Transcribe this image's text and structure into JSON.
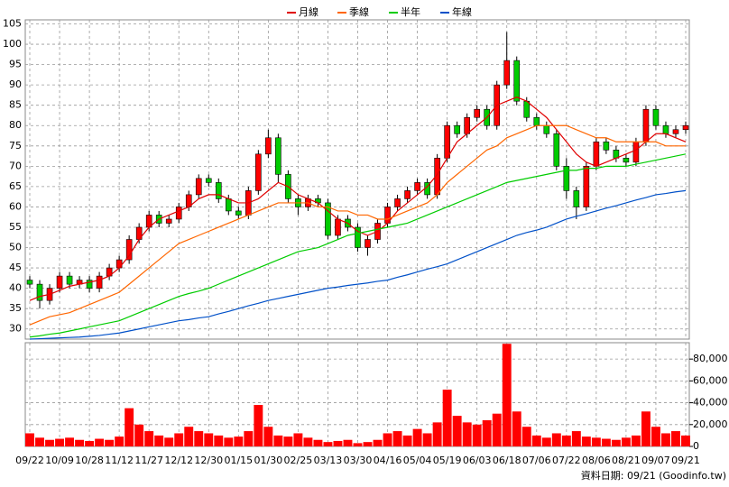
{
  "chart_data": [
    {
      "type": "candlestick",
      "caption": "資料日期: 09/21 (Goodinfo.tw)",
      "categories": [
        "09/22",
        null,
        null,
        "10/09",
        null,
        null,
        "10/28",
        null,
        null,
        "11/12",
        null,
        null,
        "11/27",
        null,
        null,
        "12/12",
        null,
        null,
        "12/30",
        null,
        null,
        "01/15",
        null,
        null,
        "01/30",
        null,
        null,
        "02/25",
        null,
        null,
        "03/13",
        null,
        null,
        "03/30",
        null,
        null,
        "04/16",
        null,
        null,
        "05/04",
        null,
        null,
        "05/19",
        null,
        null,
        "06/03",
        null,
        null,
        "06/18",
        null,
        null,
        "07/06",
        null,
        null,
        "07/22",
        null,
        null,
        "08/06",
        null,
        null,
        "08/21",
        null,
        null,
        "09/07",
        null,
        null,
        "09/21"
      ],
      "open": [
        42,
        41,
        37,
        40,
        43,
        41,
        42,
        40,
        43,
        45,
        47,
        52,
        55,
        58,
        56,
        57,
        60,
        63,
        67,
        66,
        62,
        59,
        58,
        64,
        73,
        77,
        68,
        62,
        60,
        62,
        61,
        53,
        57,
        55,
        50,
        52,
        56,
        60,
        62,
        64,
        66,
        63,
        72,
        80,
        78,
        82,
        84,
        80,
        90,
        96,
        86,
        82,
        80,
        78,
        70,
        64,
        60,
        70,
        76,
        74,
        72,
        71,
        76,
        84,
        80,
        78,
        79
      ],
      "high": [
        43,
        42,
        41,
        44,
        44,
        43,
        43,
        44,
        46,
        48,
        53,
        56,
        59,
        59,
        58,
        61,
        64,
        68,
        68,
        67,
        63,
        60,
        65,
        74,
        79,
        78,
        69,
        63,
        63,
        63,
        62,
        58,
        58,
        56,
        53,
        57,
        61,
        63,
        65,
        67,
        67,
        73,
        81,
        81,
        83,
        85,
        85,
        91,
        103,
        97,
        87,
        83,
        81,
        79,
        72,
        65,
        71,
        77,
        77,
        75,
        73,
        77,
        85,
        85,
        81,
        80,
        81
      ],
      "low": [
        40,
        35,
        36,
        39,
        40,
        40,
        39,
        39,
        42,
        44,
        46,
        51,
        54,
        55,
        55,
        56,
        59,
        62,
        65,
        61,
        58,
        57,
        57,
        63,
        72,
        66,
        61,
        58,
        59,
        60,
        52,
        52,
        54,
        49,
        48,
        51,
        55,
        59,
        61,
        63,
        62,
        62,
        71,
        77,
        77,
        81,
        79,
        79,
        89,
        85,
        81,
        79,
        77,
        69,
        62,
        57,
        59,
        69,
        73,
        71,
        70,
        70,
        75,
        79,
        77,
        77,
        78
      ],
      "close": [
        41,
        37,
        40,
        43,
        41,
        42,
        40,
        43,
        45,
        47,
        52,
        55,
        58,
        56,
        57,
        60,
        63,
        67,
        66,
        62,
        59,
        58,
        64,
        73,
        77,
        68,
        62,
        60,
        62,
        61,
        53,
        57,
        55,
        50,
        52,
        56,
        60,
        62,
        64,
        66,
        63,
        72,
        80,
        78,
        82,
        84,
        80,
        90,
        96,
        86,
        82,
        80,
        78,
        70,
        64,
        60,
        70,
        76,
        74,
        72,
        71,
        76,
        84,
        80,
        78,
        79,
        80
      ],
      "up_color": "#ff0000",
      "down_color": "#00cc00",
      "series": [
        {
          "name": "月線",
          "color": "#e00000",
          "values": [
            37,
            38,
            38.5,
            39.5,
            40.5,
            41,
            41.5,
            42,
            43,
            45,
            48,
            52,
            55,
            57,
            58,
            59,
            60,
            62,
            63,
            63,
            62,
            61,
            61,
            62,
            64,
            66,
            65,
            63,
            62,
            61,
            59,
            57,
            56,
            54,
            53,
            54,
            56,
            59,
            61,
            63,
            65,
            68,
            72,
            76,
            78,
            80,
            82,
            85,
            86,
            87,
            86,
            84,
            82,
            79,
            76,
            73,
            71,
            70,
            71,
            72,
            73,
            74,
            76,
            78,
            78,
            77,
            76
          ]
        },
        {
          "name": "季線",
          "color": "#ff6600",
          "values": [
            31,
            32,
            33,
            33.5,
            34,
            35,
            36,
            37,
            38,
            39,
            41,
            43,
            45,
            47,
            49,
            51,
            52,
            53,
            54,
            55,
            56,
            57,
            58,
            59,
            60,
            61,
            61,
            61,
            61,
            60,
            60,
            59,
            59,
            58,
            58,
            57,
            57,
            58,
            59,
            60,
            61,
            63,
            66,
            68,
            70,
            72,
            74,
            75,
            77,
            78,
            79,
            80,
            80,
            80,
            80,
            79,
            78,
            77,
            77,
            76,
            76,
            76,
            76,
            76,
            75,
            75,
            75
          ]
        },
        {
          "name": "半年",
          "color": "#00cc00",
          "values": [
            28,
            28.3,
            28.7,
            29,
            29.5,
            30,
            30.5,
            31,
            31.5,
            32,
            33,
            34,
            35,
            36,
            37,
            38,
            38.7,
            39.3,
            40,
            41,
            42,
            43,
            44,
            45,
            46,
            47,
            48,
            49,
            49.5,
            50,
            51,
            52,
            53,
            53.5,
            54,
            54.5,
            55,
            55.5,
            56,
            57,
            58,
            59,
            60,
            61,
            62,
            63,
            64,
            65,
            66,
            66.5,
            67,
            67.5,
            68,
            68.5,
            69,
            69,
            69.5,
            69.5,
            70,
            70,
            70,
            70.5,
            71,
            71.5,
            72,
            72.5,
            73
          ]
        },
        {
          "name": "年線",
          "color": "#0050c8",
          "values": [
            27.5,
            27.6,
            27.7,
            27.8,
            27.9,
            28,
            28.2,
            28.4,
            28.7,
            29,
            29.5,
            30,
            30.5,
            31,
            31.5,
            32,
            32.3,
            32.7,
            33,
            33.7,
            34.3,
            35,
            35.7,
            36.3,
            37,
            37.5,
            38,
            38.5,
            39,
            39.5,
            40,
            40.3,
            40.7,
            41,
            41.3,
            41.7,
            42,
            42.7,
            43.3,
            44,
            44.7,
            45.3,
            46,
            47,
            48,
            49,
            50,
            51,
            52,
            53,
            53.7,
            54.3,
            55,
            56,
            57,
            57.7,
            58.3,
            59,
            59.7,
            60.3,
            61,
            61.7,
            62.3,
            63,
            63.3,
            63.7,
            64
          ]
        }
      ],
      "ylim": [
        27.5,
        106
      ],
      "yticks": [
        30,
        35,
        40,
        45,
        50,
        55,
        60,
        65,
        70,
        75,
        80,
        85,
        90,
        95,
        100,
        105
      ],
      "grid": true
    },
    {
      "type": "bar",
      "values": [
        12000,
        8000,
        6000,
        7000,
        8000,
        6000,
        5000,
        7000,
        6000,
        9000,
        35000,
        20000,
        14000,
        10000,
        8000,
        12000,
        18000,
        14000,
        12000,
        10000,
        8000,
        9000,
        14000,
        38000,
        18000,
        10000,
        9000,
        12000,
        8000,
        6000,
        4000,
        5000,
        6000,
        3000,
        4000,
        6000,
        12000,
        14000,
        10000,
        16000,
        12000,
        22000,
        52000,
        28000,
        22000,
        20000,
        24000,
        30000,
        94000,
        32000,
        18000,
        10000,
        8000,
        12000,
        10000,
        14000,
        9000,
        8000,
        7000,
        6000,
        8000,
        10000,
        32000,
        18000,
        12000,
        14000,
        10000
      ],
      "color": "#ff0000",
      "ylim": [
        0,
        95000
      ],
      "yticks": [
        0,
        {
          "value": 20000,
          "label": "20,000"
        },
        {
          "value": 40000,
          "label": "40,000"
        },
        {
          "value": 60000,
          "label": "60,000"
        },
        {
          "value": 80000,
          "label": "80,000"
        }
      ],
      "grid": true
    }
  ]
}
